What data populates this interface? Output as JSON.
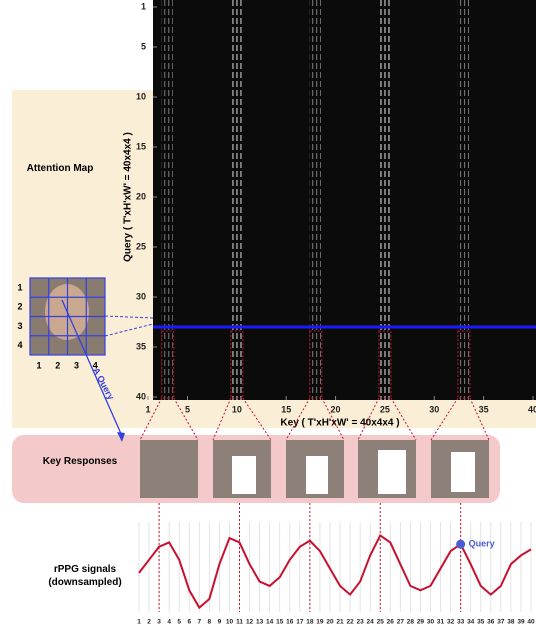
{
  "attention_map": {
    "label": "Attention Map",
    "y_axis_label": "Query ( T'xH'xW' = 40x4x4 )",
    "x_axis_label": "Key ( T'xH'xW' = 40x4x4 )",
    "yticks": [
      1,
      5,
      10,
      15,
      20,
      25,
      30,
      35,
      40
    ],
    "xticks": [
      1,
      5,
      10,
      15,
      20,
      25,
      30,
      35,
      40
    ],
    "lim": [
      1,
      40
    ],
    "query_row": 33,
    "key_columns": [
      3,
      10,
      18,
      25,
      33
    ]
  },
  "face_grid": {
    "row_labels": [
      "1",
      "2",
      "3",
      "4"
    ],
    "col_labels": [
      "1",
      "2",
      "3",
      "4"
    ],
    "query_label": "A Query"
  },
  "key_responses": {
    "label": "Key Responses"
  },
  "chart_data": {
    "type": "line",
    "y_label": "rPPG signals\n(downsampled)",
    "x": [
      1,
      2,
      3,
      4,
      5,
      6,
      7,
      8,
      9,
      10,
      11,
      12,
      13,
      14,
      15,
      16,
      17,
      18,
      19,
      20,
      21,
      22,
      23,
      24,
      25,
      26,
      27,
      28,
      29,
      30,
      31,
      32,
      33,
      34,
      35,
      36,
      37,
      38,
      39,
      40
    ],
    "values": [
      0.45,
      0.6,
      0.75,
      0.8,
      0.6,
      0.25,
      0.05,
      0.15,
      0.55,
      0.85,
      0.8,
      0.55,
      0.35,
      0.3,
      0.4,
      0.6,
      0.75,
      0.82,
      0.7,
      0.5,
      0.3,
      0.2,
      0.35,
      0.65,
      0.88,
      0.8,
      0.55,
      0.3,
      0.25,
      0.3,
      0.5,
      0.7,
      0.78,
      0.55,
      0.3,
      0.2,
      0.3,
      0.55,
      0.65,
      0.72
    ],
    "color": "#c8102e",
    "xlim": [
      1,
      40
    ],
    "ylim": [
      0,
      1
    ],
    "xticks": [
      1,
      2,
      3,
      4,
      5,
      6,
      7,
      8,
      9,
      10,
      11,
      12,
      13,
      14,
      15,
      16,
      17,
      18,
      19,
      20,
      21,
      22,
      23,
      24,
      25,
      26,
      27,
      28,
      29,
      30,
      31,
      32,
      33,
      34,
      35,
      36,
      37,
      38,
      39,
      40
    ],
    "grid": true,
    "highlight_x": [
      3,
      11,
      18,
      25,
      33
    ],
    "query_x": 33,
    "query_label": "Query",
    "query_color": "#4a5bd8"
  }
}
